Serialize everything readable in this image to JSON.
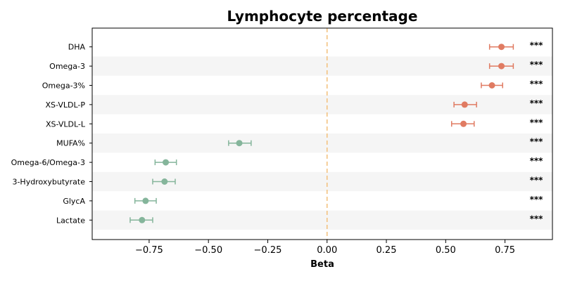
{
  "chart_data": {
    "type": "forest",
    "title": "Lymphocyte percentage",
    "xlabel": "Beta",
    "ylabel": "",
    "xlim": [
      -0.99,
      0.95
    ],
    "x_ticks": [
      -0.75,
      -0.5,
      -0.25,
      0.0,
      0.25,
      0.5,
      0.75
    ],
    "x_tick_labels": [
      "−0.75",
      "−0.50",
      "−0.25",
      "0.00",
      "0.25",
      "0.50",
      "0.75"
    ],
    "reference_line": 0.0,
    "grid": false,
    "alternating_row_shading": true,
    "colors": {
      "positive": "#e07b62",
      "negative": "#85b59b",
      "reference_line": "#f3c07a",
      "row_shade": "#f5f5f5"
    },
    "rows": [
      {
        "label": "DHA",
        "beta": 0.735,
        "ci_low": 0.685,
        "ci_high": 0.785,
        "significance": "***"
      },
      {
        "label": "Omega-3",
        "beta": 0.735,
        "ci_low": 0.685,
        "ci_high": 0.785,
        "significance": "***"
      },
      {
        "label": "Omega-3%",
        "beta": 0.695,
        "ci_low": 0.65,
        "ci_high": 0.74,
        "significance": "***"
      },
      {
        "label": "XS-VLDL-P",
        "beta": 0.58,
        "ci_low": 0.535,
        "ci_high": 0.63,
        "significance": "***"
      },
      {
        "label": "XS-VLDL-L",
        "beta": 0.575,
        "ci_low": 0.525,
        "ci_high": 0.62,
        "significance": "***"
      },
      {
        "label": "MUFA%",
        "beta": -0.37,
        "ci_low": -0.415,
        "ci_high": -0.32,
        "significance": "***"
      },
      {
        "label": "Omega-6/Omega-3",
        "beta": -0.68,
        "ci_low": -0.725,
        "ci_high": -0.635,
        "significance": "***"
      },
      {
        "label": "3-Hydroxybutyrate",
        "beta": -0.685,
        "ci_low": -0.735,
        "ci_high": -0.64,
        "significance": "***"
      },
      {
        "label": "GlycA",
        "beta": -0.765,
        "ci_low": -0.81,
        "ci_high": -0.72,
        "significance": "***"
      },
      {
        "label": "Lactate",
        "beta": -0.78,
        "ci_low": -0.83,
        "ci_high": -0.735,
        "significance": "***"
      }
    ]
  }
}
